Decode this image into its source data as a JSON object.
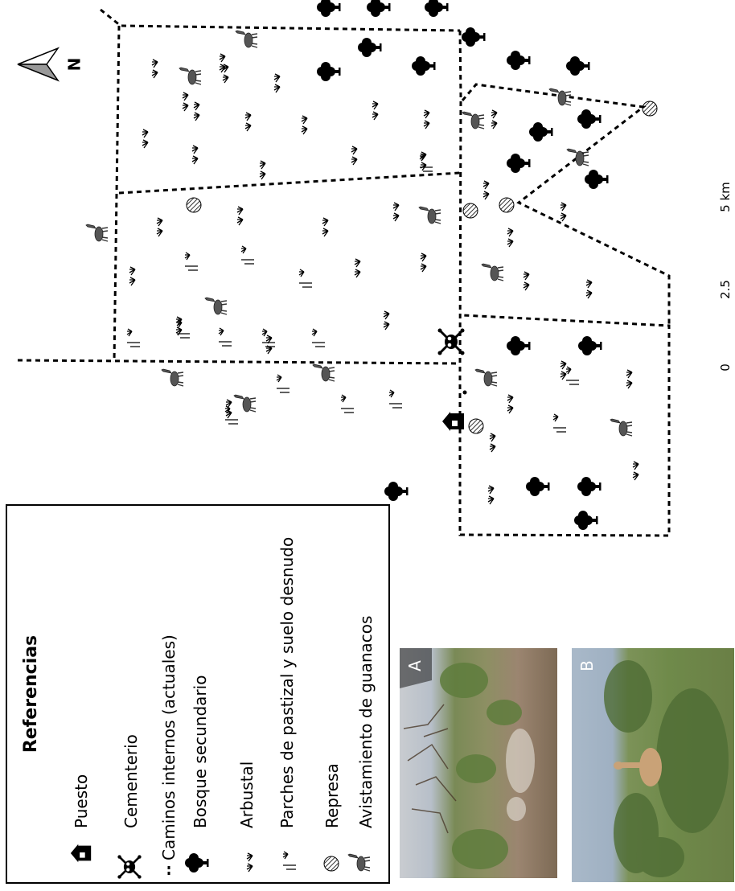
{
  "legend": {
    "title": "Referencias",
    "items": [
      {
        "label": "Puesto",
        "icon": "house-icon"
      },
      {
        "label": "Cementerio",
        "icon": "skull-crossbones-icon"
      },
      {
        "label": "Caminos internos (actuales)",
        "icon": "dashed-line-icon"
      },
      {
        "label": "Bosque secundario",
        "icon": "tree-icon"
      },
      {
        "label": "Arbustal",
        "icon": "shrub-icon"
      },
      {
        "label": "Parches de pastizal y suelo desnudo",
        "icon": "grass-patch-icon"
      },
      {
        "label": "Represa",
        "icon": "hatched-circle-icon"
      },
      {
        "label": "Avistamiento de guanacos",
        "icon": "guanaco-icon"
      }
    ]
  },
  "north_arrow": {
    "label": "N"
  },
  "scale_bar": {
    "labels": [
      "0",
      "2.5",
      "5 km"
    ]
  },
  "photos": [
    {
      "label": "A",
      "description": "dry scrubland"
    },
    {
      "label": "B",
      "description": "guanaco in shrubland"
    }
  ],
  "colors": {
    "ink": "#000000",
    "photo_a_sky": "#b9c4cf",
    "photo_b_sky": "#a9b9c9"
  }
}
